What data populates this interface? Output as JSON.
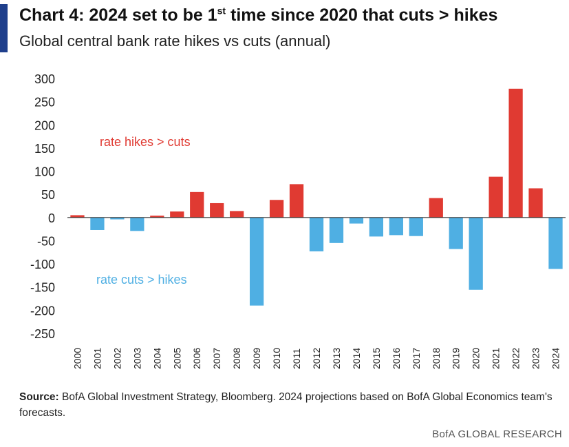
{
  "header": {
    "title_main": "Chart 4: 2024 set to be 1",
    "title_sup": "st",
    "title_rest": " time since 2020 that  cuts > hikes",
    "subtitle": "Global central bank rate hikes vs cuts (annual)"
  },
  "chart_data": {
    "type": "bar",
    "title": "Chart 4: 2024 set to be 1st time since 2020 that cuts > hikes",
    "subtitle": "Global central bank rate hikes vs cuts (annual)",
    "xlabel": "",
    "ylabel": "",
    "ylim": [
      -250,
      300
    ],
    "yticks": [
      300,
      250,
      200,
      150,
      100,
      50,
      0,
      -50,
      -100,
      -150,
      -200,
      -250
    ],
    "grid": false,
    "legend": "none",
    "categories": [
      "2000",
      "2001",
      "2002",
      "2003",
      "2004",
      "2005",
      "2006",
      "2007",
      "2008",
      "2009",
      "2010",
      "2011",
      "2012",
      "2013",
      "2014",
      "2015",
      "2016",
      "2017",
      "2018",
      "2019",
      "2020",
      "2021",
      "2022",
      "2023",
      "2024"
    ],
    "values": [
      5,
      -27,
      -4,
      -29,
      4,
      13,
      55,
      31,
      14,
      -190,
      38,
      72,
      -73,
      -55,
      -13,
      -41,
      -38,
      -40,
      42,
      -68,
      -156,
      88,
      278,
      63,
      -111
    ],
    "colors": {
      "positive": "#e03a32",
      "negative": "#4fafe3"
    },
    "annotations": [
      {
        "text": "rate hikes > cuts",
        "color": "#e03a32"
      },
      {
        "text": "rate cuts > hikes",
        "color": "#4fafe3"
      }
    ]
  },
  "footnote": {
    "source_label": "Source:",
    "source_text": " BofA Global Investment Strategy, Bloomberg. 2024 projections  based on BofA Global Economics  team's forecasts."
  },
  "branding": {
    "footer": "BofA GLOBAL RESEARCH",
    "accent_color": "#1f3f8c"
  }
}
